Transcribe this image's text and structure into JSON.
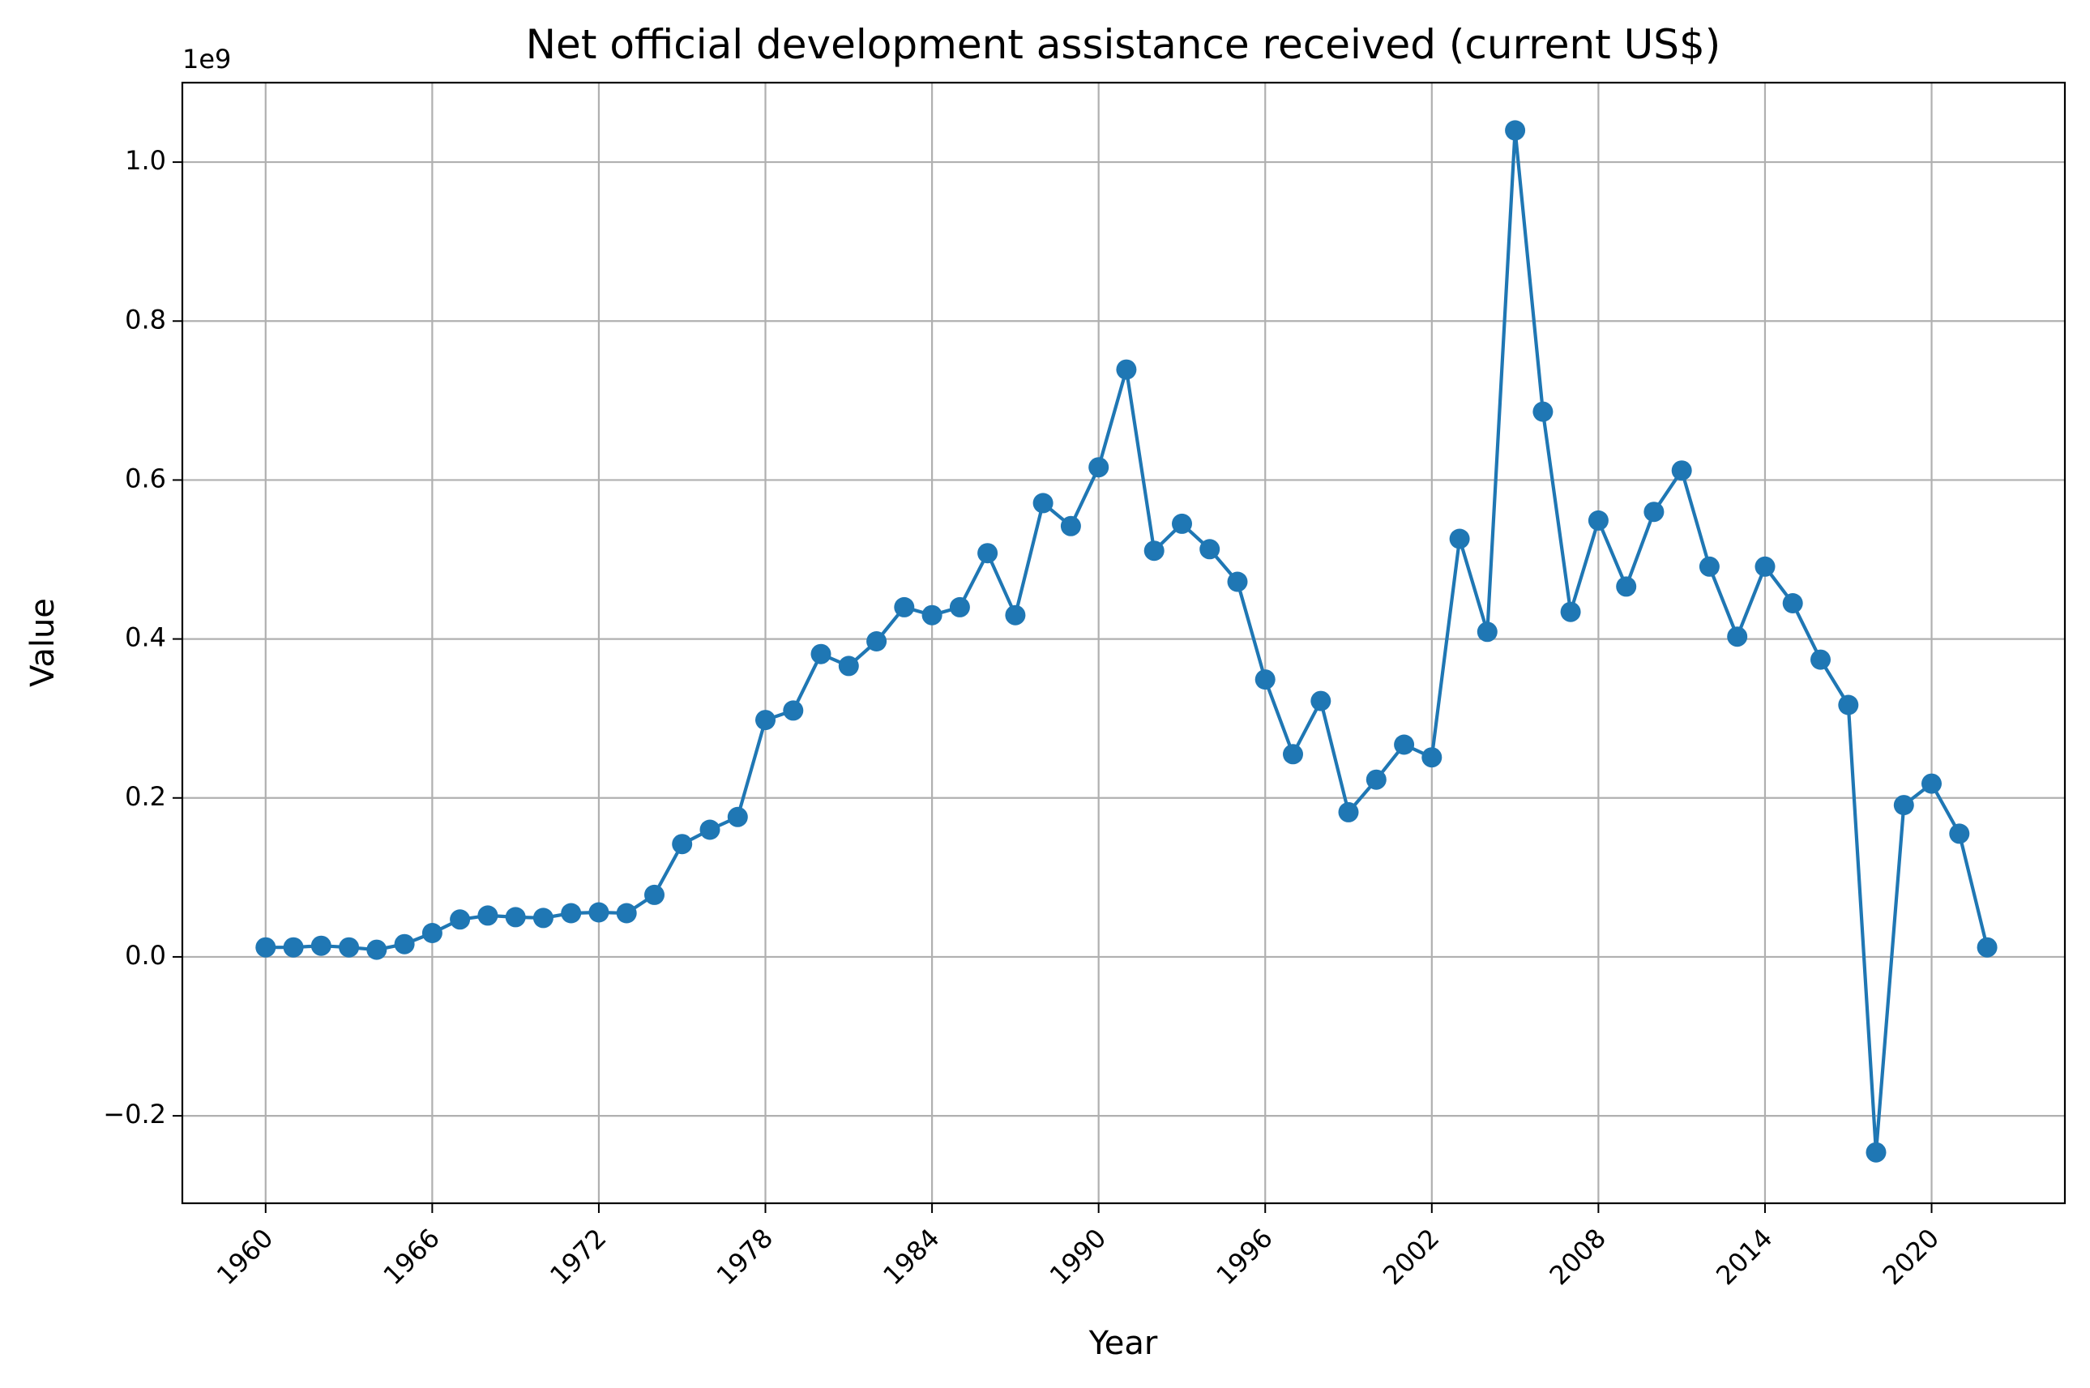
{
  "chart_data": {
    "type": "line",
    "title": "Net official development assistance received (current US$)",
    "xlabel": "Year",
    "ylabel": "Value",
    "y_offset_label": "1e9",
    "xlim": [
      1957,
      2024.8
    ],
    "ylim": [
      -0.31,
      1.1
    ],
    "x_ticks": [
      1960,
      1966,
      1972,
      1978,
      1984,
      1990,
      1996,
      2002,
      2008,
      2014,
      2020
    ],
    "x_tick_labels": [
      "1960",
      "1966",
      "1972",
      "1978",
      "1984",
      "1990",
      "1996",
      "2002",
      "2008",
      "2014",
      "2020"
    ],
    "y_ticks": [
      -0.2,
      0.0,
      0.2,
      0.4,
      0.6,
      0.8,
      1.0
    ],
    "y_tick_labels": [
      "−0.2",
      "0.0",
      "0.2",
      "0.4",
      "0.6",
      "0.8",
      "1.0"
    ],
    "grid": true,
    "color": "#1f77b4",
    "series": [
      {
        "x": [
          1960,
          1961,
          1962,
          1963,
          1964,
          1965,
          1966,
          1967,
          1968,
          1969,
          1970,
          1971,
          1972,
          1973,
          1974,
          1975,
          1976,
          1977,
          1978,
          1979,
          1980,
          1981,
          1982,
          1983,
          1984,
          1985,
          1986,
          1987,
          1988,
          1989,
          1990,
          1991,
          1992,
          1993,
          1994,
          1995,
          1996,
          1997,
          1998,
          1999,
          2000,
          2001,
          2002,
          2003,
          2004,
          2005,
          2006,
          2007,
          2008,
          2009,
          2010,
          2011,
          2012,
          2013,
          2014,
          2015,
          2016,
          2017,
          2018,
          2019,
          2020,
          2021,
          2022
        ],
        "values": [
          0.012,
          0.012,
          0.014,
          0.012,
          0.009,
          0.016,
          0.03,
          0.047,
          0.052,
          0.05,
          0.049,
          0.055,
          0.056,
          0.055,
          0.078,
          0.142,
          0.16,
          0.176,
          0.298,
          0.31,
          0.381,
          0.366,
          0.397,
          0.44,
          0.43,
          0.44,
          0.508,
          0.43,
          0.571,
          0.542,
          0.616,
          0.739,
          0.511,
          0.545,
          0.513,
          0.472,
          0.349,
          0.255,
          0.322,
          0.182,
          0.223,
          0.267,
          0.251,
          0.526,
          0.409,
          1.04,
          0.686,
          0.434,
          0.549,
          0.466,
          0.56,
          0.612,
          0.491,
          0.403,
          0.491,
          0.445,
          0.374,
          0.317,
          -0.246,
          0.191,
          0.218,
          0.155,
          0.012
        ]
      }
    ]
  }
}
